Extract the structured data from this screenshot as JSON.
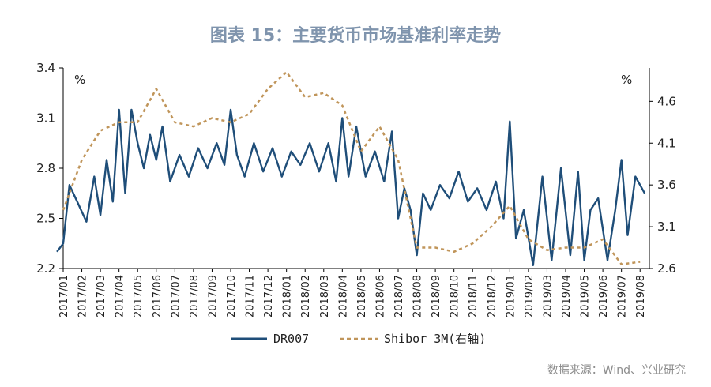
{
  "title": "图表 15：主要货币市场基准利率走势",
  "source": "数据来源：Wind、兴业研究",
  "chart_data": {
    "type": "line",
    "left_unit": "%",
    "right_unit": "%",
    "y_left": {
      "min": 2.2,
      "max": 3.4,
      "ticks": [
        "2.2",
        "2.5",
        "2.8",
        "3.1",
        "3.4"
      ]
    },
    "y_right": {
      "min": 2.6,
      "max": 5.0,
      "ticks": [
        "2.6",
        "3.1",
        "3.6",
        "4.1",
        "4.6"
      ]
    },
    "x_months": [
      "2017/01",
      "2017/02",
      "2017/03",
      "2017/04",
      "2017/05",
      "2017/06",
      "2017/07",
      "2017/08",
      "2017/09",
      "2017/10",
      "2017/11",
      "2017/12",
      "2018/01",
      "2018/02",
      "2018/03",
      "2018/04",
      "2018/05",
      "2018/06",
      "2018/07",
      "2018/08",
      "2018/09",
      "2018/10",
      "2018/11",
      "2018/12",
      "2019/01",
      "2019/02",
      "2019/03",
      "2019/04",
      "2019/05",
      "2019/06",
      "2019/07",
      "2019/08"
    ],
    "legend": [
      "DR007",
      "Shibor 3M(右轴)"
    ],
    "colors": {
      "dr007": "#1f4e79",
      "shibor": "#c0955a"
    },
    "series": [
      {
        "name": "DR007",
        "axis": "left",
        "x": [
          "2017/01",
          "2017/01",
          "2017/01",
          "2017/02",
          "2017/02",
          "2017/03",
          "2017/03",
          "2017/03",
          "2017/04",
          "2017/04",
          "2017/04",
          "2017/05",
          "2017/05",
          "2017/05",
          "2017/06",
          "2017/06",
          "2017/06",
          "2017/07",
          "2017/07",
          "2017/08",
          "2017/08",
          "2017/09",
          "2017/09",
          "2017/10",
          "2017/10",
          "2017/10",
          "2017/11",
          "2017/11",
          "2017/12",
          "2017/12",
          "2018/01",
          "2018/01",
          "2018/02",
          "2018/02",
          "2018/03",
          "2018/03",
          "2018/04",
          "2018/04",
          "2018/04",
          "2018/05",
          "2018/05",
          "2018/06",
          "2018/06",
          "2018/07",
          "2018/07",
          "2018/07",
          "2018/08",
          "2018/08",
          "2018/08",
          "2018/09",
          "2018/09",
          "2018/10",
          "2018/10",
          "2018/11",
          "2018/11",
          "2018/12",
          "2018/12",
          "2019/01",
          "2019/01",
          "2019/01",
          "2019/02",
          "2019/02",
          "2019/03",
          "2019/03",
          "2019/04",
          "2019/04",
          "2019/05",
          "2019/05",
          "2019/05",
          "2019/06",
          "2019/06",
          "2019/07",
          "2019/07",
          "2019/07",
          "2019/08",
          "2019/08"
        ],
        "values": [
          2.3,
          2.35,
          2.7,
          2.6,
          2.48,
          2.75,
          2.52,
          2.85,
          2.6,
          3.15,
          2.65,
          3.15,
          2.95,
          2.8,
          3.0,
          2.85,
          3.05,
          2.72,
          2.88,
          2.75,
          2.92,
          2.8,
          2.95,
          2.82,
          3.15,
          2.88,
          2.75,
          2.95,
          2.78,
          2.92,
          2.75,
          2.9,
          2.82,
          2.95,
          2.78,
          2.95,
          2.72,
          3.1,
          2.75,
          3.05,
          2.75,
          2.9,
          2.72,
          3.02,
          2.5,
          2.68,
          2.55,
          2.28,
          2.65,
          2.55,
          2.7,
          2.62,
          2.78,
          2.6,
          2.68,
          2.55,
          2.72,
          2.5,
          3.08,
          2.38,
          2.55,
          2.22,
          2.75,
          2.25,
          2.8,
          2.28,
          2.78,
          2.25,
          2.55,
          2.62,
          2.25,
          2.55,
          2.85,
          2.4,
          2.75,
          2.65
        ]
      },
      {
        "name": "Shibor 3M(右轴)",
        "axis": "right",
        "x": [
          "2017/01",
          "2017/02",
          "2017/03",
          "2017/04",
          "2017/05",
          "2017/06",
          "2017/07",
          "2017/08",
          "2017/09",
          "2017/10",
          "2017/11",
          "2017/12",
          "2018/01",
          "2018/02",
          "2018/03",
          "2018/04",
          "2018/05",
          "2018/06",
          "2018/07",
          "2018/08",
          "2018/09",
          "2018/10",
          "2018/11",
          "2018/12",
          "2019/01",
          "2019/02",
          "2019/03",
          "2019/04",
          "2019/05",
          "2019/06",
          "2019/07",
          "2019/08"
        ],
        "values": [
          3.3,
          3.9,
          4.25,
          4.35,
          4.35,
          4.75,
          4.35,
          4.3,
          4.4,
          4.35,
          4.45,
          4.75,
          4.95,
          4.65,
          4.7,
          4.55,
          4.0,
          4.3,
          3.9,
          2.85,
          2.85,
          2.8,
          2.9,
          3.1,
          3.35,
          2.95,
          2.82,
          2.85,
          2.85,
          2.95,
          2.65,
          2.68
        ]
      }
    ]
  }
}
